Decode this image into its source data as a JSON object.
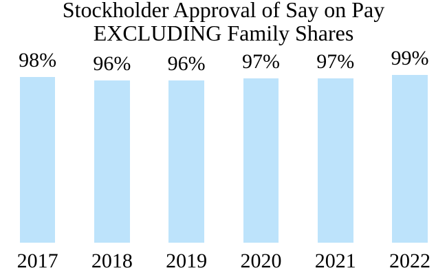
{
  "title": {
    "line1": "Stockholder Approval of Say on Pay",
    "line2": "EXCLUDING Family Shares"
  },
  "chart_data": {
    "type": "bar",
    "title": "Stockholder Approval of Say on Pay EXCLUDING Family Shares",
    "categories": [
      "2017",
      "2018",
      "2019",
      "2020",
      "2021",
      "2022"
    ],
    "values": [
      98,
      96,
      96,
      97,
      97,
      99
    ],
    "data_labels": [
      "98%",
      "96%",
      "96%",
      "97%",
      "97%",
      "99%"
    ],
    "xlabel": "",
    "ylabel": "",
    "ylim": [
      0,
      100
    ],
    "grid": false,
    "legend_position": "none",
    "axes_visible": false,
    "bar_color": "#BDE3FB",
    "text_color": "#000000",
    "background_color": "#FFFFFF"
  }
}
